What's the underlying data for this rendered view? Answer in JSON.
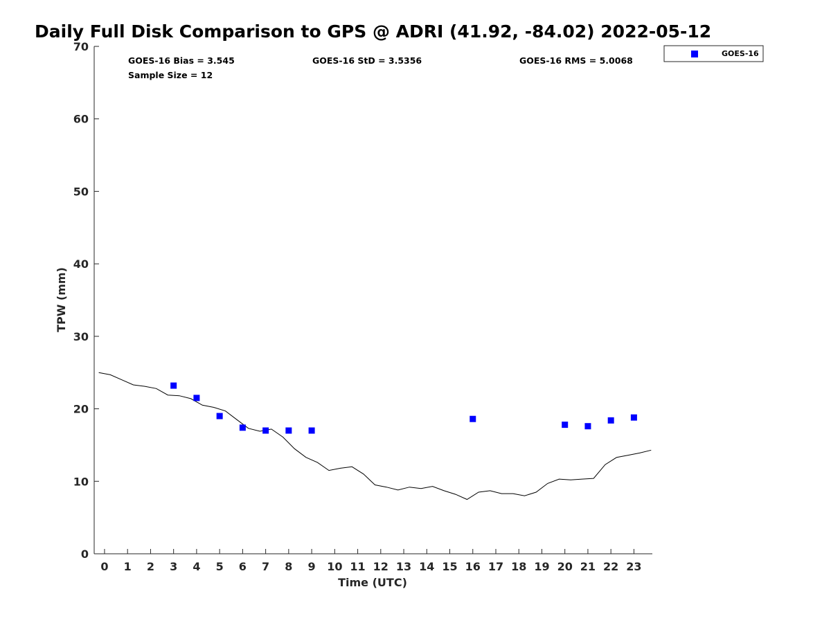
{
  "chart_data": {
    "type": "scatter",
    "title": "Daily Full Disk Comparison to GPS @ ADRI (41.92, -84.02) 2022-05-12",
    "xlabel": "Time (UTC)",
    "ylabel": "TPW (mm)",
    "xlim": [
      -0.45,
      23.8
    ],
    "ylim": [
      0,
      70
    ],
    "xticks": [
      0,
      1,
      2,
      3,
      4,
      5,
      6,
      7,
      8,
      9,
      10,
      11,
      12,
      13,
      14,
      15,
      16,
      17,
      18,
      19,
      20,
      21,
      22,
      23
    ],
    "yticks": [
      0,
      10,
      20,
      30,
      40,
      50,
      60,
      70
    ],
    "grid": false,
    "legend_position": "top-right, outside plot",
    "stats": {
      "bias": "GOES-16 Bias = 3.545",
      "std": "GOES-16 StD = 3.5356",
      "rms": "GOES-16 RMS = 5.0068",
      "sample_size": "Sample Size = 12"
    },
    "series": [
      {
        "name": "GOES-16",
        "kind": "scatter",
        "marker": "square",
        "color": "#0000ff",
        "x": [
          3,
          4,
          5,
          6,
          7,
          8,
          9,
          16,
          20,
          21,
          22,
          23
        ],
        "y": [
          23.2,
          21.5,
          19.0,
          17.4,
          17.0,
          17.0,
          17.0,
          18.6,
          17.8,
          17.6,
          18.4,
          18.8
        ]
      },
      {
        "kind": "line",
        "color": "#000000",
        "x": [
          -0.25,
          0.25,
          0.75,
          1.25,
          1.75,
          2.25,
          2.75,
          3.25,
          3.75,
          4.25,
          4.75,
          5.25,
          5.75,
          6.25,
          6.75,
          7.25,
          7.75,
          8.25,
          8.75,
          9.25,
          9.75,
          10.25,
          10.75,
          11.25,
          11.75,
          12.25,
          12.75,
          13.25,
          13.75,
          14.25,
          14.75,
          15.25,
          15.75,
          16.25,
          16.75,
          17.25,
          17.75,
          18.25,
          18.75,
          19.25,
          19.75,
          20.25,
          20.75,
          21.25,
          21.75,
          22.25,
          22.75,
          23.25,
          23.75
        ],
        "y": [
          25.0,
          24.7,
          24.0,
          23.3,
          23.1,
          22.8,
          21.9,
          21.8,
          21.4,
          20.5,
          20.2,
          19.7,
          18.5,
          17.3,
          16.9,
          17.2,
          16.1,
          14.5,
          13.3,
          12.6,
          11.5,
          11.8,
          12.0,
          11.0,
          9.5,
          9.2,
          8.8,
          9.2,
          9.0,
          9.3,
          8.7,
          8.2,
          7.5,
          8.5,
          8.7,
          8.3,
          8.3,
          8.0,
          8.5,
          9.7,
          10.3,
          10.2,
          10.3,
          10.4,
          12.3,
          13.3,
          13.6,
          13.9,
          14.3
        ]
      }
    ]
  },
  "colors": {
    "marker": "#0000ff",
    "line": "#000000",
    "axis": "#262626"
  }
}
